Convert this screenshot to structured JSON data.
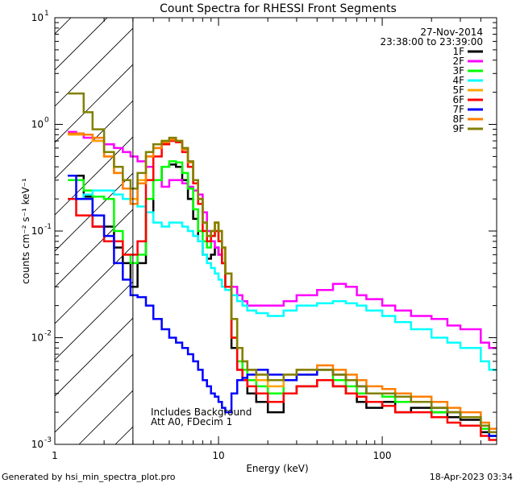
{
  "chart_data": {
    "type": "line",
    "title": "Count Spectra for RHESSI Front Segments",
    "date": "27-Nov-2014",
    "time_range": "23:38:00 to 23:39:00",
    "xlabel": "Energy (keV)",
    "ylabel": "counts cm⁻² s⁻¹ keV⁻¹",
    "xscale": "log",
    "yscale": "log",
    "xlim": [
      1,
      500
    ],
    "ylim": [
      0.001,
      10
    ],
    "x_ticks": [
      {
        "value": 1,
        "label": "1"
      },
      {
        "value": 10,
        "label": "10"
      },
      {
        "value": 100,
        "label": "100"
      }
    ],
    "y_ticks": [
      {
        "value": 0.001,
        "base": "10",
        "exp": "-3"
      },
      {
        "value": 0.01,
        "base": "10",
        "exp": "-2"
      },
      {
        "value": 0.1,
        "base": "10",
        "exp": "-1"
      },
      {
        "value": 1,
        "base": "10",
        "exp": "0"
      },
      {
        "value": 10,
        "base": "10",
        "exp": "1"
      }
    ],
    "hatched_region": [
      1,
      3
    ],
    "legend_position": "top-right",
    "annotations": [
      "Includes Background",
      "Att A0, FDecim 1"
    ],
    "series": [
      {
        "name": "1F",
        "color": "#000000",
        "x": [
          1.2,
          1.35,
          1.5,
          1.7,
          2.0,
          2.3,
          2.6,
          2.9,
          3.2,
          3.6,
          4.0,
          4.5,
          5.0,
          5.5,
          6.0,
          6.5,
          7.0,
          7.5,
          8.0,
          8.5,
          9.0,
          9.5,
          10,
          10.5,
          11,
          12,
          13,
          14,
          15,
          17,
          20,
          25,
          30,
          40,
          50,
          60,
          70,
          80,
          100,
          120,
          150,
          200,
          250,
          300,
          400,
          450
        ],
        "y": [
          0.33,
          0.33,
          0.21,
          0.11,
          0.11,
          0.07,
          0.05,
          0.03,
          0.05,
          0.15,
          0.3,
          0.4,
          0.42,
          0.4,
          0.3,
          0.2,
          0.13,
          0.08,
          0.06,
          0.055,
          0.06,
          0.07,
          0.06,
          0.05,
          0.03,
          0.008,
          0.005,
          0.004,
          0.003,
          0.0025,
          0.002,
          0.003,
          0.0035,
          0.004,
          0.0035,
          0.003,
          0.0025,
          0.0022,
          0.0025,
          0.002,
          0.0022,
          0.002,
          0.0018,
          0.0017,
          0.0013,
          0.0012
        ]
      },
      {
        "name": "2F",
        "color": "#ff00ff",
        "x": [
          1.2,
          1.35,
          1.5,
          1.7,
          2.0,
          2.3,
          2.6,
          2.9,
          3.2,
          3.6,
          4.0,
          4.5,
          5.0,
          5.5,
          6.0,
          6.5,
          7.0,
          7.5,
          8.0,
          8.5,
          9.0,
          9.5,
          10,
          10.5,
          11,
          12,
          13,
          14,
          15,
          17,
          20,
          25,
          30,
          40,
          50,
          60,
          70,
          80,
          100,
          120,
          150,
          200,
          250,
          300,
          400,
          450
        ],
        "y": [
          0.85,
          0.82,
          0.75,
          0.7,
          0.65,
          0.6,
          0.55,
          0.5,
          0.45,
          0.4,
          0.3,
          0.26,
          0.3,
          0.3,
          0.28,
          0.26,
          0.24,
          0.22,
          0.15,
          0.1,
          0.08,
          0.07,
          0.06,
          0.05,
          0.04,
          0.03,
          0.025,
          0.022,
          0.02,
          0.02,
          0.02,
          0.022,
          0.025,
          0.028,
          0.032,
          0.03,
          0.025,
          0.023,
          0.02,
          0.018,
          0.016,
          0.015,
          0.013,
          0.012,
          0.009,
          0.008
        ]
      },
      {
        "name": "3F",
        "color": "#00ff00",
        "x": [
          1.2,
          1.35,
          1.5,
          1.7,
          2.0,
          2.3,
          2.6,
          2.9,
          3.2,
          3.6,
          4.0,
          4.5,
          5.0,
          5.5,
          6.0,
          6.5,
          7.0,
          7.5,
          8.0,
          8.5,
          9.0,
          9.5,
          10,
          10.5,
          11,
          12,
          13,
          14,
          15,
          17,
          20,
          25,
          30,
          40,
          50,
          60,
          70,
          80,
          100,
          120,
          150,
          200,
          250,
          300,
          400,
          450
        ],
        "y": [
          0.3,
          0.3,
          0.24,
          0.21,
          0.2,
          0.1,
          0.06,
          0.05,
          0.06,
          0.2,
          0.3,
          0.4,
          0.45,
          0.44,
          0.35,
          0.25,
          0.16,
          0.1,
          0.08,
          0.07,
          0.09,
          0.12,
          0.08,
          0.05,
          0.03,
          0.01,
          0.006,
          0.005,
          0.004,
          0.0035,
          0.003,
          0.004,
          0.0045,
          0.005,
          0.004,
          0.0035,
          0.003,
          0.003,
          0.0028,
          0.0025,
          0.0025,
          0.002,
          0.002,
          0.0018,
          0.0014,
          0.0012
        ]
      },
      {
        "name": "4F",
        "color": "#00ffff",
        "x": [
          1.2,
          1.35,
          1.5,
          1.7,
          2.0,
          2.3,
          2.6,
          2.9,
          3.2,
          3.6,
          4.0,
          4.5,
          5.0,
          5.5,
          6.0,
          6.5,
          7.0,
          7.5,
          8.0,
          8.5,
          9.0,
          9.5,
          10,
          10.5,
          11,
          12,
          13,
          14,
          15,
          17,
          20,
          25,
          30,
          40,
          50,
          60,
          70,
          80,
          100,
          120,
          150,
          200,
          250,
          300,
          400,
          450
        ],
        "y": [
          0.2,
          0.2,
          0.22,
          0.24,
          0.24,
          0.22,
          0.2,
          0.18,
          0.17,
          0.15,
          0.12,
          0.11,
          0.12,
          0.12,
          0.11,
          0.1,
          0.09,
          0.08,
          0.06,
          0.05,
          0.045,
          0.04,
          0.035,
          0.03,
          0.028,
          0.025,
          0.022,
          0.02,
          0.018,
          0.017,
          0.016,
          0.018,
          0.02,
          0.021,
          0.022,
          0.021,
          0.02,
          0.018,
          0.016,
          0.014,
          0.012,
          0.01,
          0.009,
          0.008,
          0.006,
          0.005
        ]
      },
      {
        "name": "5F",
        "color": "#ffa500",
        "x": [
          1.2,
          1.35,
          1.5,
          1.7,
          2.0,
          2.3,
          2.6,
          2.9,
          3.2,
          3.6,
          4.0,
          4.5,
          5.0,
          5.5,
          6.0,
          6.5,
          7.0,
          7.5,
          8.0,
          8.5,
          9.0,
          9.5,
          10,
          10.5,
          11,
          12,
          13,
          14,
          15,
          17,
          20,
          25,
          30,
          40,
          50,
          60,
          70,
          80,
          100,
          120,
          150,
          200,
          250,
          300,
          400,
          450
        ],
        "y": [
          0.8,
          0.8,
          0.8,
          0.7,
          0.5,
          0.35,
          0.25,
          0.2,
          0.3,
          0.5,
          0.6,
          0.7,
          0.72,
          0.7,
          0.6,
          0.45,
          0.3,
          0.2,
          0.12,
          0.09,
          0.1,
          0.12,
          0.1,
          0.07,
          0.04,
          0.015,
          0.008,
          0.006,
          0.005,
          0.004,
          0.0035,
          0.004,
          0.0045,
          0.005,
          0.0045,
          0.004,
          0.0035,
          0.003,
          0.003,
          0.0028,
          0.0025,
          0.0022,
          0.002,
          0.0018,
          0.0015,
          0.0013
        ]
      },
      {
        "name": "6F",
        "color": "#ff0000",
        "x": [
          1.2,
          1.35,
          1.5,
          1.7,
          2.0,
          2.3,
          2.6,
          2.9,
          3.2,
          3.6,
          4.0,
          4.5,
          5.0,
          5.5,
          6.0,
          6.5,
          7.0,
          7.5,
          8.0,
          8.5,
          9.0,
          9.5,
          10,
          10.5,
          11,
          12,
          13,
          14,
          15,
          17,
          20,
          25,
          30,
          40,
          50,
          60,
          70,
          80,
          100,
          120,
          150,
          200,
          250,
          300,
          400,
          450
        ],
        "y": [
          0.2,
          0.14,
          0.14,
          0.11,
          0.08,
          0.08,
          0.06,
          0.06,
          0.08,
          0.3,
          0.5,
          0.65,
          0.7,
          0.68,
          0.55,
          0.4,
          0.28,
          0.18,
          0.1,
          0.08,
          0.09,
          0.1,
          0.08,
          0.05,
          0.03,
          0.01,
          0.005,
          0.004,
          0.0035,
          0.003,
          0.0025,
          0.003,
          0.0035,
          0.004,
          0.0035,
          0.003,
          0.0028,
          0.0025,
          0.0023,
          0.002,
          0.002,
          0.0018,
          0.0016,
          0.0015,
          0.0012,
          0.0011
        ]
      },
      {
        "name": "7F",
        "color": "#0000ff",
        "x": [
          1.2,
          1.35,
          1.5,
          1.7,
          2.0,
          2.3,
          2.6,
          2.9,
          3.2,
          3.6,
          4.0,
          4.5,
          5.0,
          5.5,
          6.0,
          6.5,
          7.0,
          7.5,
          8.0,
          8.5,
          9.0,
          9.5,
          10,
          10.5,
          11,
          12,
          13,
          14,
          15,
          17,
          20,
          25,
          30,
          40,
          50,
          60,
          70,
          80,
          100,
          120,
          150,
          200,
          250,
          300,
          400,
          450
        ],
        "y": [
          0.33,
          0.2,
          0.2,
          0.14,
          0.09,
          0.05,
          0.035,
          0.025,
          0.024,
          0.02,
          0.015,
          0.012,
          0.01,
          0.009,
          0.008,
          0.007,
          0.006,
          0.005,
          0.004,
          0.0035,
          0.003,
          0.0028,
          0.0025,
          0.0022,
          0.002,
          0.003,
          0.004,
          0.0042,
          0.0045,
          0.005,
          0.0045,
          0.004,
          0.0045,
          0.005,
          0.0045,
          0.004,
          0.0035,
          0.003,
          0.003,
          0.0028,
          0.0025,
          0.0022,
          0.002,
          0.0018,
          0.0015,
          0.0012
        ]
      },
      {
        "name": "8F",
        "color": "#ff7f00",
        "x": [
          1.2,
          1.35,
          1.5,
          1.7,
          2.0,
          2.3,
          2.6,
          2.9,
          3.2,
          3.6,
          4.0,
          4.5,
          5.0,
          5.5,
          6.0,
          6.5,
          7.0,
          7.5,
          8.0,
          8.5,
          9.0,
          9.5,
          10,
          10.5,
          11,
          12,
          13,
          14,
          15,
          17,
          20,
          25,
          30,
          40,
          50,
          60,
          70,
          80,
          100,
          120,
          150,
          200,
          250,
          300,
          400,
          450
        ],
        "y": [
          0.82,
          0.82,
          0.8,
          0.75,
          0.5,
          0.35,
          0.25,
          0.18,
          0.28,
          0.5,
          0.6,
          0.68,
          0.72,
          0.7,
          0.58,
          0.44,
          0.3,
          0.2,
          0.12,
          0.09,
          0.1,
          0.12,
          0.1,
          0.07,
          0.04,
          0.015,
          0.008,
          0.006,
          0.005,
          0.0045,
          0.004,
          0.0045,
          0.005,
          0.0055,
          0.005,
          0.0045,
          0.004,
          0.0035,
          0.0033,
          0.003,
          0.0028,
          0.0025,
          0.0022,
          0.002,
          0.0016,
          0.0014
        ]
      },
      {
        "name": "9F",
        "color": "#808000",
        "x": [
          1.2,
          1.35,
          1.5,
          1.7,
          2.0,
          2.3,
          2.6,
          2.9,
          3.2,
          3.6,
          4.0,
          4.5,
          5.0,
          5.5,
          6.0,
          6.5,
          7.0,
          7.5,
          8.0,
          8.5,
          9.0,
          9.5,
          10,
          10.5,
          11,
          12,
          13,
          14,
          15,
          17,
          20,
          25,
          30,
          40,
          50,
          60,
          70,
          80,
          100,
          120,
          150,
          200,
          250,
          300,
          400,
          450
        ],
        "y": [
          1.95,
          1.95,
          1.3,
          0.9,
          0.55,
          0.4,
          0.3,
          0.25,
          0.35,
          0.55,
          0.65,
          0.7,
          0.75,
          0.7,
          0.6,
          0.45,
          0.3,
          0.2,
          0.12,
          0.09,
          0.1,
          0.12,
          0.1,
          0.07,
          0.04,
          0.015,
          0.008,
          0.006,
          0.005,
          0.0045,
          0.004,
          0.0045,
          0.005,
          0.005,
          0.0045,
          0.004,
          0.0035,
          0.003,
          0.003,
          0.0028,
          0.0025,
          0.0022,
          0.002,
          0.0018,
          0.0015,
          0.0013
        ]
      }
    ]
  },
  "footer": {
    "generated_by": "Generated by hsi_min_spectra_plot.pro",
    "timestamp": "18-Apr-2023 03:34"
  }
}
